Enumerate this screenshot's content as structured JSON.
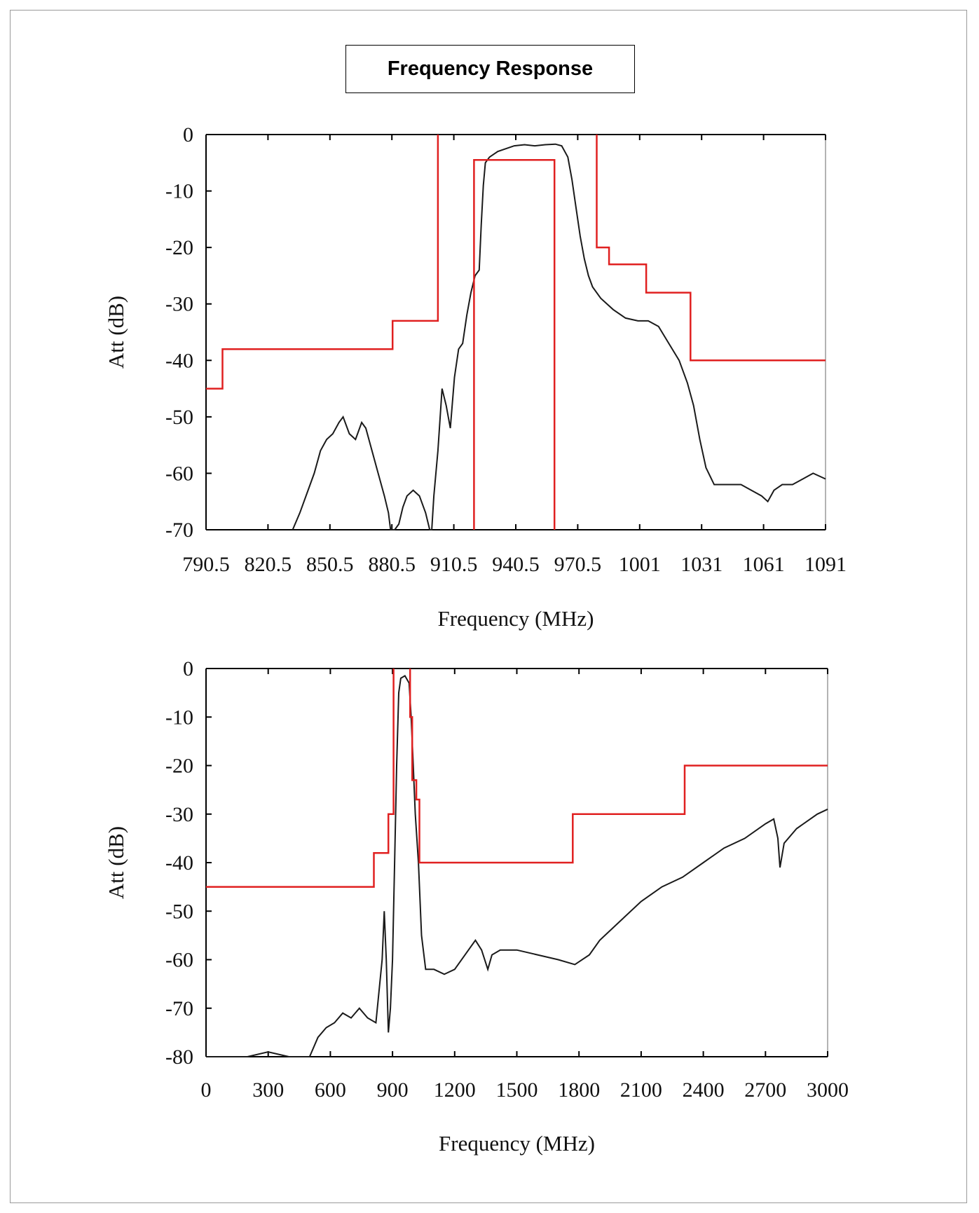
{
  "title": "Frequency Response",
  "chart_data": [
    {
      "type": "line",
      "xlabel": "Frequency (MHz)",
      "ylabel": "Att (dB)",
      "xlim": [
        790.5,
        1091
      ],
      "ylim": [
        -70,
        0
      ],
      "x_tick_labels": [
        "790.5",
        "820.5",
        "850.5",
        "880.5",
        "910.5",
        "940.5",
        "970.5",
        "1001",
        "1031",
        "1061",
        "1091"
      ],
      "y_tick_labels": [
        "0",
        "-10",
        "-20",
        "-30",
        "-40",
        "-50",
        "-60",
        "-70"
      ],
      "y_ticks": [
        0,
        -10,
        -20,
        -30,
        -40,
        -50,
        -60,
        -70
      ],
      "grid": false,
      "series": [
        {
          "color": "#1a1a1a",
          "points": [
            [
              832.5,
              -70
            ],
            [
              836,
              -67
            ],
            [
              840,
              -63
            ],
            [
              843,
              -60
            ],
            [
              846,
              -56
            ],
            [
              849,
              -54
            ],
            [
              852,
              -53
            ],
            [
              855,
              -51
            ],
            [
              857,
              -50
            ],
            [
              860,
              -53
            ],
            [
              863,
              -54
            ],
            [
              866,
              -51
            ],
            [
              868,
              -52
            ],
            [
              871,
              -56
            ],
            [
              874,
              -60
            ],
            [
              877,
              -64
            ],
            [
              879,
              -67
            ],
            [
              880,
              -70
            ],
            [
              882,
              -70
            ],
            [
              884,
              -69
            ],
            [
              886,
              -66
            ],
            [
              888,
              -64
            ],
            [
              891,
              -63
            ],
            [
              894,
              -64
            ],
            [
              897,
              -67
            ],
            [
              899,
              -70
            ],
            [
              900,
              -70
            ],
            [
              901,
              -64
            ],
            [
              903,
              -56
            ],
            [
              905,
              -45
            ],
            [
              907,
              -48
            ],
            [
              909,
              -52
            ],
            [
              911,
              -43
            ],
            [
              913,
              -38
            ],
            [
              915,
              -37
            ],
            [
              917,
              -32
            ],
            [
              919,
              -28
            ],
            [
              921,
              -25
            ],
            [
              923,
              -24
            ],
            [
              924,
              -16
            ],
            [
              925,
              -9
            ],
            [
              926,
              -5
            ],
            [
              928,
              -4
            ],
            [
              932,
              -3
            ],
            [
              940,
              -2
            ],
            [
              945,
              -1.8
            ],
            [
              950,
              -2
            ],
            [
              955,
              -1.8
            ],
            [
              960,
              -1.7
            ],
            [
              963,
              -2
            ],
            [
              966,
              -4
            ],
            [
              968,
              -8
            ],
            [
              970,
              -13
            ],
            [
              972,
              -18
            ],
            [
              974,
              -22
            ],
            [
              976,
              -25
            ],
            [
              978,
              -27
            ],
            [
              982,
              -29
            ],
            [
              988,
              -31
            ],
            [
              994,
              -32.5
            ],
            [
              1000,
              -33
            ],
            [
              1005,
              -33
            ],
            [
              1010,
              -34
            ],
            [
              1015,
              -37
            ],
            [
              1020,
              -40
            ],
            [
              1024,
              -44
            ],
            [
              1027,
              -48
            ],
            [
              1030,
              -54
            ],
            [
              1033,
              -59
            ],
            [
              1037,
              -62
            ],
            [
              1043,
              -62
            ],
            [
              1050,
              -62
            ],
            [
              1055,
              -63
            ],
            [
              1060,
              -64
            ],
            [
              1063,
              -65
            ],
            [
              1066,
              -63
            ],
            [
              1070,
              -62
            ],
            [
              1075,
              -62
            ],
            [
              1080,
              -61
            ],
            [
              1085,
              -60
            ],
            [
              1091,
              -61
            ]
          ]
        },
        {
          "color": "#e02020",
          "points": [
            [
              790.5,
              -45
            ],
            [
              798.5,
              -45
            ],
            [
              798.5,
              -38
            ],
            [
              881,
              -38
            ],
            [
              881,
              -33
            ],
            [
              903,
              -33
            ],
            [
              903,
              0
            ]
          ]
        },
        {
          "color": "#e02020",
          "points": [
            [
              980,
              0
            ],
            [
              980,
              -20
            ],
            [
              986,
              -20
            ],
            [
              986,
              -23
            ],
            [
              1004,
              -23
            ],
            [
              1004,
              -28
            ],
            [
              1025.5,
              -28
            ],
            [
              1025.5,
              -40
            ],
            [
              1091,
              -40
            ]
          ]
        },
        {
          "color": "#e02020",
          "points": [
            [
              920.5,
              -70
            ],
            [
              920.5,
              -4.5
            ],
            [
              959.5,
              -4.5
            ],
            [
              959.5,
              -70
            ]
          ]
        }
      ]
    },
    {
      "type": "line",
      "xlabel": "Frequency (MHz)",
      "ylabel": "Att (dB)",
      "xlim": [
        0,
        3000
      ],
      "ylim": [
        -80,
        0
      ],
      "x_tick_labels": [
        "0",
        "300",
        "600",
        "900",
        "1200",
        "1500",
        "1800",
        "2100",
        "2400",
        "2700",
        "3000"
      ],
      "y_tick_labels": [
        "0",
        "-10",
        "-20",
        "-30",
        "-40",
        "-50",
        "-60",
        "-70",
        "-80"
      ],
      "y_ticks": [
        0,
        -10,
        -20,
        -30,
        -40,
        -50,
        -60,
        -70,
        -80
      ],
      "grid": false,
      "series": [
        {
          "color": "#1a1a1a",
          "points": [
            [
              0,
              -80
            ],
            [
              200,
              -80
            ],
            [
              300,
              -79
            ],
            [
              400,
              -80
            ],
            [
              500,
              -80
            ],
            [
              540,
              -76
            ],
            [
              580,
              -74
            ],
            [
              620,
              -73
            ],
            [
              660,
              -71
            ],
            [
              700,
              -72
            ],
            [
              740,
              -70
            ],
            [
              780,
              -72
            ],
            [
              820,
              -73
            ],
            [
              850,
              -60
            ],
            [
              860,
              -50
            ],
            [
              870,
              -60
            ],
            [
              880,
              -75
            ],
            [
              890,
              -70
            ],
            [
              900,
              -60
            ],
            [
              910,
              -40
            ],
            [
              920,
              -20
            ],
            [
              930,
              -5
            ],
            [
              940,
              -2
            ],
            [
              960,
              -1.5
            ],
            [
              980,
              -3
            ],
            [
              990,
              -10
            ],
            [
              1000,
              -20
            ],
            [
              1010,
              -30
            ],
            [
              1025,
              -40
            ],
            [
              1040,
              -55
            ],
            [
              1060,
              -62
            ],
            [
              1100,
              -62
            ],
            [
              1150,
              -63
            ],
            [
              1200,
              -62
            ],
            [
              1250,
              -59
            ],
            [
              1300,
              -56
            ],
            [
              1330,
              -58
            ],
            [
              1360,
              -62
            ],
            [
              1380,
              -59
            ],
            [
              1420,
              -58
            ],
            [
              1500,
              -58
            ],
            [
              1600,
              -59
            ],
            [
              1700,
              -60
            ],
            [
              1780,
              -61
            ],
            [
              1850,
              -59
            ],
            [
              1900,
              -56
            ],
            [
              2000,
              -52
            ],
            [
              2100,
              -48
            ],
            [
              2200,
              -45
            ],
            [
              2300,
              -43
            ],
            [
              2400,
              -40
            ],
            [
              2500,
              -37
            ],
            [
              2600,
              -35
            ],
            [
              2700,
              -32
            ],
            [
              2740,
              -31
            ],
            [
              2760,
              -35
            ],
            [
              2770,
              -41
            ],
            [
              2790,
              -36
            ],
            [
              2850,
              -33
            ],
            [
              2950,
              -30
            ],
            [
              3000,
              -29
            ]
          ]
        },
        {
          "color": "#e02020",
          "points": [
            [
              0,
              -45
            ],
            [
              810,
              -45
            ],
            [
              810,
              -38
            ],
            [
              880,
              -38
            ],
            [
              880,
              -30
            ],
            [
              905,
              -30
            ],
            [
              905,
              0
            ]
          ]
        },
        {
          "color": "#e02020",
          "points": [
            [
              985,
              0
            ],
            [
              985,
              -10
            ],
            [
              995,
              -10
            ],
            [
              995,
              -23
            ],
            [
              1015,
              -23
            ],
            [
              1015,
              -27
            ],
            [
              1030,
              -27
            ],
            [
              1030,
              -40
            ],
            [
              1770,
              -40
            ],
            [
              1770,
              -30
            ],
            [
              2310,
              -30
            ],
            [
              2310,
              -20
            ],
            [
              3000,
              -20
            ]
          ]
        }
      ]
    }
  ]
}
